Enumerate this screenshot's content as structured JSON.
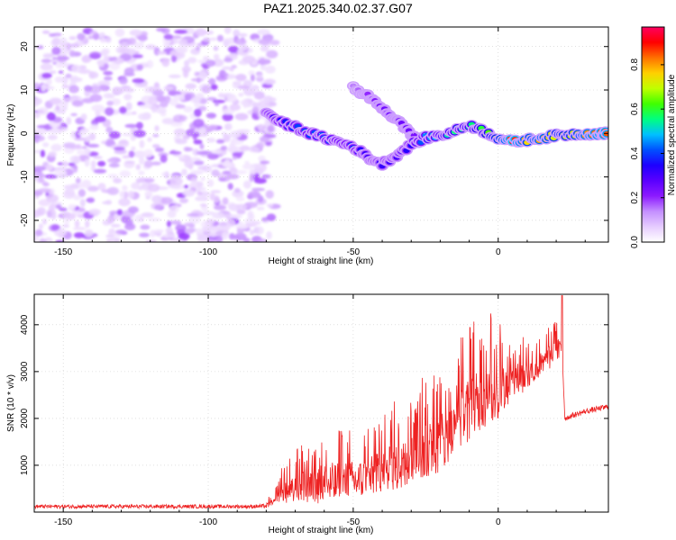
{
  "title": "PAZ1.2025.340.02.37.G07",
  "chart_data": [
    {
      "type": "heatmap",
      "name": "spectrogram",
      "xlabel": "Height of straight line (km)",
      "ylabel": "Frequency (Hz)",
      "xlim": [
        -160,
        38
      ],
      "ylim": [
        -25,
        24.5
      ],
      "xticks": [
        -150,
        -100,
        -50,
        0
      ],
      "yticks": [
        -20,
        -10,
        0,
        10,
        20
      ],
      "noise_region_x": [
        -160,
        -77
      ],
      "noise_region_y": [
        -25,
        24
      ],
      "main_ridge": {
        "x": [
          -80,
          -75,
          -70,
          -65,
          -60,
          -55,
          -50,
          -45,
          -40,
          -35,
          -30,
          -25,
          -20,
          -15,
          -10,
          -5,
          0,
          5,
          10,
          15,
          20,
          25,
          30,
          35,
          38
        ],
        "y": [
          5,
          2.5,
          1.5,
          0,
          -1,
          -2,
          -3,
          -5.5,
          -7,
          -5,
          -2.5,
          -1,
          -0.5,
          0.5,
          2,
          0.5,
          -1,
          -2,
          -1.5,
          -1,
          -0.5,
          -0.2,
          0,
          0,
          0
        ],
        "amplitude": [
          0.3,
          0.35,
          0.4,
          0.4,
          0.42,
          0.4,
          0.38,
          0.3,
          0.32,
          0.3,
          0.35,
          0.45,
          0.5,
          0.55,
          0.55,
          0.6,
          0.7,
          0.9,
          0.75,
          0.8,
          0.7,
          0.7,
          0.8,
          0.85,
          0.85
        ]
      },
      "secondary_ridge": {
        "x": [
          -50,
          -45,
          -40,
          -35,
          -30,
          -27
        ],
        "y": [
          10.5,
          8.5,
          6,
          3,
          0,
          -3
        ],
        "amplitude": [
          0.15,
          0.2,
          0.25,
          0.25,
          0.25,
          0.2
        ]
      },
      "colorbar": {
        "label": "Normalized spectral amplitude",
        "range": [
          0,
          0.97
        ],
        "ticks": [
          "0.0",
          "0.2",
          "0.4",
          "0.6",
          "0.8"
        ],
        "tick_values": [
          0,
          0.2,
          0.4,
          0.6,
          0.8
        ],
        "colors": [
          "#ffffff",
          "#e6ccff",
          "#c48fff",
          "#8c1aff",
          "#5a00ff",
          "#1e00ff",
          "#0050ff",
          "#00c0ff",
          "#00ff80",
          "#40ff00",
          "#c0ff00",
          "#ffd000",
          "#ff7000",
          "#ff0000",
          "#ff0060"
        ]
      }
    },
    {
      "type": "line",
      "name": "snr",
      "xlabel": "Height of straight line (km)",
      "ylabel": "SNR (10 * v/v)",
      "xlim": [
        -160,
        38
      ],
      "ylim": [
        0,
        4650
      ],
      "xticks": [
        -150,
        -100,
        -50,
        0
      ],
      "yticks": [
        1000,
        2000,
        3000,
        4000
      ],
      "color": "#ee2222",
      "envelope": {
        "x": [
          -160,
          -140,
          -120,
          -100,
          -85,
          -80,
          -77,
          -75,
          -70,
          -65,
          -60,
          -55,
          -50,
          -45,
          -40,
          -35,
          -30,
          -25,
          -20,
          -18,
          -15,
          -10,
          -5,
          0,
          5,
          10,
          15,
          20,
          22,
          23,
          25,
          30,
          38
        ],
        "base": [
          120,
          120,
          120,
          120,
          120,
          130,
          200,
          330,
          450,
          500,
          550,
          600,
          650,
          700,
          800,
          900,
          1000,
          1150,
          1400,
          1500,
          1700,
          2100,
          2300,
          2500,
          2700,
          2900,
          3100,
          3400,
          3500,
          2000,
          2050,
          2150,
          2250
        ],
        "spread": [
          80,
          80,
          80,
          80,
          80,
          90,
          150,
          350,
          500,
          700,
          800,
          700,
          700,
          700,
          800,
          900,
          1000,
          1100,
          1200,
          1100,
          1000,
          1300,
          1100,
          1100,
          700,
          600,
          500,
          400,
          400,
          120,
          120,
          120,
          120
        ]
      },
      "peak": {
        "x": 22,
        "y": 4620
      }
    }
  ]
}
